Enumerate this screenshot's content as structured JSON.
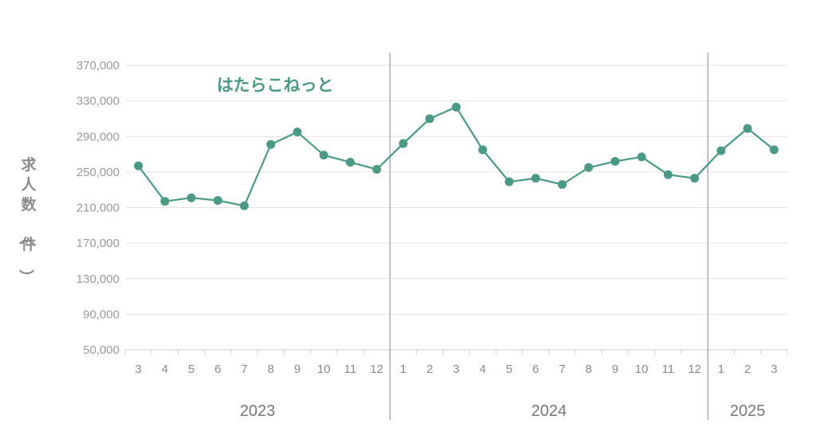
{
  "chart_data": {
    "type": "line",
    "ylabel": "求人数（件）",
    "ylim": [
      50000,
      370000
    ],
    "yticks": [
      "50,000",
      "90,000",
      "130,000",
      "170,000",
      "210,000",
      "250,000",
      "290,000",
      "330,000",
      "370,000"
    ],
    "categories": [
      "3",
      "4",
      "5",
      "6",
      "7",
      "8",
      "9",
      "10",
      "11",
      "12",
      "1",
      "2",
      "3",
      "4",
      "5",
      "6",
      "7",
      "8",
      "9",
      "10",
      "11",
      "12",
      "1",
      "2",
      "3"
    ],
    "years": [
      {
        "label": "2023",
        "months": 10
      },
      {
        "label": "2024",
        "months": 12
      },
      {
        "label": "2025",
        "months": 3
      }
    ],
    "series": [
      {
        "name": "はたらこねっと",
        "color": "#4a9a86",
        "values": [
          257000,
          217000,
          221000,
          218000,
          212000,
          281000,
          295000,
          269000,
          261000,
          253000,
          282000,
          310000,
          323000,
          275000,
          239000,
          243000,
          236000,
          255000,
          262000,
          267000,
          247000,
          243000,
          274000,
          299000,
          275000
        ]
      }
    ],
    "grid": true
  }
}
